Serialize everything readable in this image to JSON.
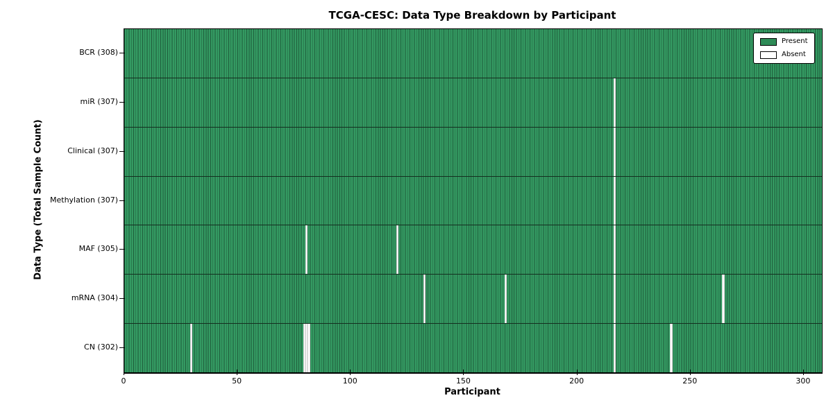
{
  "chart_data": {
    "type": "heatmap",
    "title": "TCGA-CESC: Data Type Breakdown by Participant",
    "xlabel": "Participant",
    "ylabel": "Data Type (Total Sample Count)",
    "x_ticks": [
      0,
      50,
      100,
      150,
      200,
      250,
      300
    ],
    "x_range": [
      0,
      308
    ],
    "n_participants": 308,
    "categories": [
      "BCR (308)",
      "miR (307)",
      "Clinical (307)",
      "Methylation (307)",
      "MAF (305)",
      "mRNA (304)",
      "CN (302)"
    ],
    "rows": [
      {
        "data_type": "BCR",
        "label": "BCR (308)",
        "present_count": 308,
        "absent_participants": []
      },
      {
        "data_type": "miR",
        "label": "miR (307)",
        "present_count": 307,
        "absent_participants": [
          216
        ]
      },
      {
        "data_type": "Clinical",
        "label": "Clinical (307)",
        "present_count": 307,
        "absent_participants": [
          216
        ]
      },
      {
        "data_type": "Methylation",
        "label": "Methylation (307)",
        "present_count": 307,
        "absent_participants": [
          216
        ]
      },
      {
        "data_type": "MAF",
        "label": "MAF (305)",
        "present_count": 305,
        "absent_participants": [
          80,
          120,
          216
        ]
      },
      {
        "data_type": "mRNA",
        "label": "mRNA (304)",
        "present_count": 304,
        "absent_participants": [
          132,
          168,
          216,
          264
        ]
      },
      {
        "data_type": "CN",
        "label": "CN (302)",
        "present_count": 302,
        "absent_participants": [
          29,
          79,
          80,
          81,
          216,
          241
        ]
      }
    ],
    "legend": [
      {
        "label": "Present",
        "color": "#2e8b57"
      },
      {
        "label": "Absent",
        "color": "#ffffff"
      }
    ],
    "colors": {
      "present": "#349a62",
      "bar_edge": "#1e5b3a",
      "absent": "#ffffff",
      "row_divider": "#142e1f",
      "axis": "#000000"
    },
    "legend_position": "upper right",
    "grid": false
  }
}
